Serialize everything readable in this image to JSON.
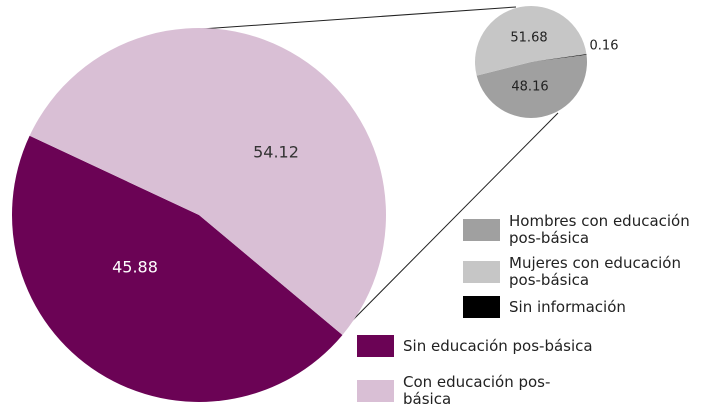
{
  "chart_data": [
    {
      "type": "pie",
      "categories": [
        "Sin educación pos-básica",
        "Con educación pos-básica"
      ],
      "values": [
        45.88,
        54.12
      ],
      "colors": [
        "#6b0355",
        "#d9bfd5"
      ]
    },
    {
      "type": "pie",
      "categories": [
        "Hombres con educación pos-básica",
        "Mujeres con educación pos-básica",
        "Sin información"
      ],
      "values": [
        48.16,
        51.68,
        0.16
      ],
      "colors": [
        "#a0a0a0",
        "#c6c6c6",
        "#000000"
      ]
    }
  ]
}
